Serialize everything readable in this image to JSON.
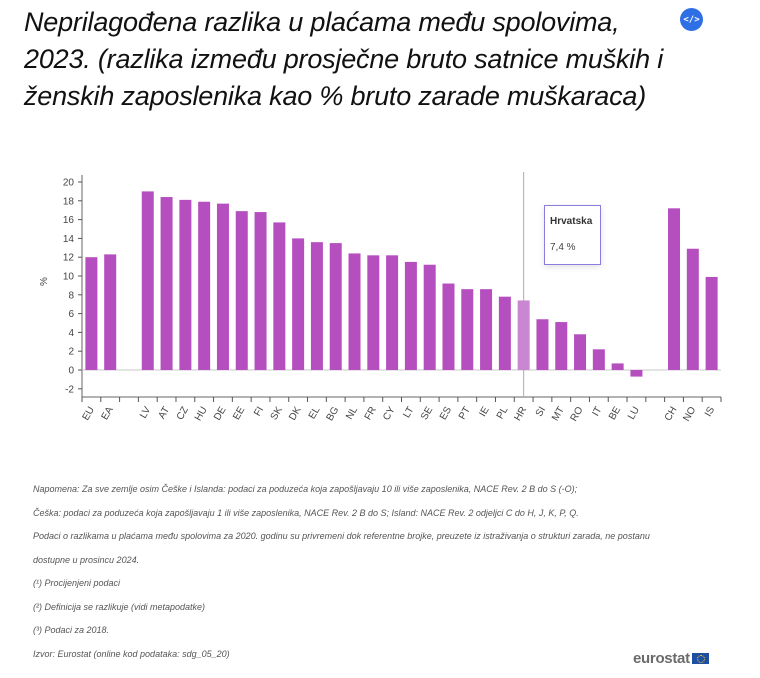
{
  "header": {
    "title": "Neprilagođena razlika u plaćama među spolovima, 2023. (razlika između prosječne bruto satnice muških i ženskih zaposlenika kao % bruto zarade muškaraca)",
    "embed_icon": "code-embed-icon",
    "embed_label": "</>"
  },
  "chart_data": {
    "type": "bar",
    "title": "Neprilagođena razlika u plaćama među spolovima, 2023. (razlika između prosječne bruto satnice muških i ženskih zaposlenika kao % bruto zarade muškaraca)",
    "xlabel": "",
    "ylabel": "%",
    "ylim": [
      -3,
      21
    ],
    "yticks": [
      -2,
      0,
      2,
      4,
      6,
      8,
      10,
      12,
      14,
      16,
      18,
      20
    ],
    "grid": false,
    "legend": null,
    "categories": [
      "EU",
      "EA",
      "",
      "LV",
      "AT",
      "CZ",
      "HU",
      "DE",
      "EE",
      "FI",
      "SK",
      "DK",
      "EL",
      "BG",
      "NL",
      "FR",
      "CY",
      "LT",
      "SE",
      "ES",
      "PT",
      "IE",
      "PL",
      "HR",
      "SI",
      "MT",
      "RO",
      "IT",
      "BE",
      "LU",
      "",
      "CH",
      "NO",
      "IS"
    ],
    "values": [
      12.0,
      12.3,
      null,
      19.0,
      18.4,
      18.1,
      17.9,
      17.7,
      16.9,
      16.8,
      15.7,
      14.0,
      13.6,
      13.5,
      12.4,
      12.2,
      12.2,
      11.5,
      11.2,
      9.2,
      8.6,
      8.6,
      7.8,
      7.4,
      5.4,
      5.1,
      3.8,
      2.2,
      0.7,
      -0.7,
      null,
      17.2,
      12.9,
      9.9
    ],
    "highlighted": "HR",
    "bar_color": "#b54fbf",
    "highlight_color": "#c887d0",
    "tooltip": {
      "label": "Hrvatska",
      "value": "7,4 %"
    }
  },
  "notes": {
    "lines": [
      "Napomena: Za sve zemlje osim Češke i Islanda: podaci za poduzeća koja zapošljavaju 10 ili više zaposlenika, NACE Rev. 2 B do S (-O);",
      "Češka: podaci za poduzeća koja zapošljavaju 1 ili više zaposlenika, NACE Rev. 2 B do S; Island: NACE Rev. 2 odjeljci C do H, J, K, P, Q.",
      "Podaci o razlikama u plaćama među spolovima za 2020. godinu su privremeni dok referentne brojke, preuzete iz istraživanja o strukturi zarada, ne postanu",
      "dostupne u prosincu 2024.",
      "(¹) Procijenjeni podaci",
      "(²) Definicija se razlikuje (vidi metapodatke)",
      "(³) Podaci za 2018.",
      "Izvor: Eurostat (online kod podataka: sdg_05_20)"
    ]
  },
  "logo": {
    "text": "eurostat",
    "icon": "eu-flag-icon"
  }
}
